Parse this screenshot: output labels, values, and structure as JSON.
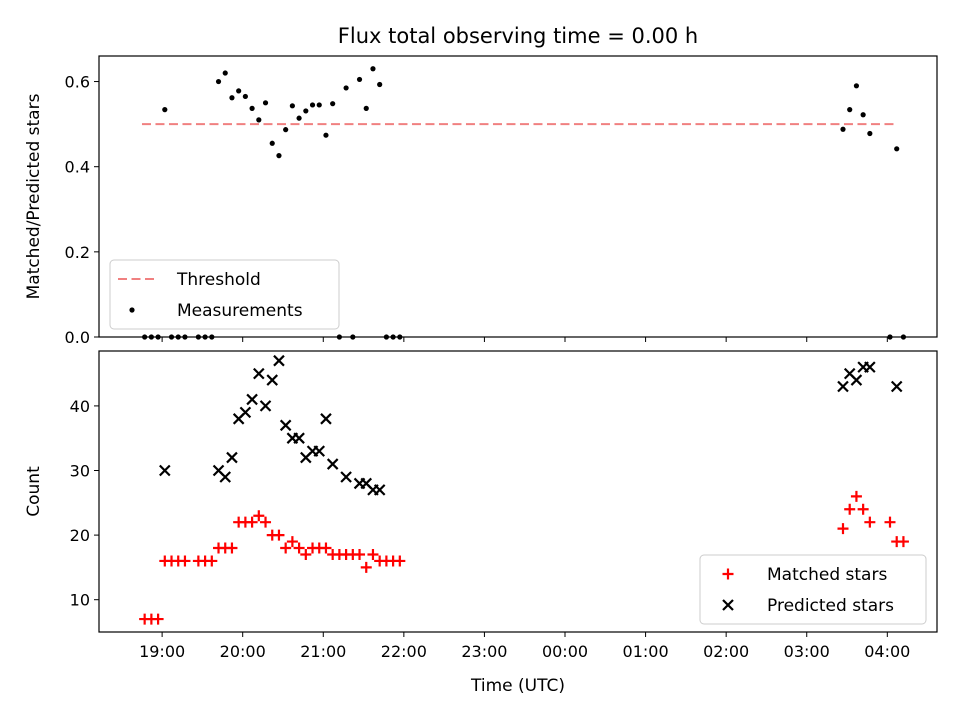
{
  "figure": {
    "title": "Flux total observing time = 0.00 h"
  },
  "chart_data": [
    {
      "type": "scatter",
      "ylabel": "Matched/Predicted stars",
      "xlabel": "",
      "ylim": [
        0,
        0.66
      ],
      "xlim": [
        "18:13",
        "04:37"
      ],
      "yticks": [
        0.0,
        0.2,
        0.4,
        0.6
      ],
      "ytick_labels": [
        "0.0",
        "0.2",
        "0.4",
        "0.6"
      ],
      "xticks": [
        "19:00",
        "20:00",
        "21:00",
        "22:00",
        "23:00",
        "00:00",
        "01:00",
        "02:00",
        "03:00",
        "04:00"
      ],
      "x_tick_labels_shown": false,
      "grid": false,
      "legend_placement": "lower-left",
      "legend": [
        {
          "label": "Threshold",
          "style": "dashed-line",
          "color": "#f08080"
        },
        {
          "label": "Measurements",
          "style": "dot",
          "color": "#000000"
        }
      ],
      "threshold": {
        "value": 0.5,
        "x_start": "18:45",
        "x_end": "04:05",
        "color": "#f08080"
      },
      "series": [
        {
          "name": "Measurements",
          "color": "#000000",
          "points": [
            [
              "18:47",
              0.0
            ],
            [
              "18:52",
              0.0
            ],
            [
              "18:57",
              0.0
            ],
            [
              "19:02",
              0.534
            ],
            [
              "19:07",
              0.0
            ],
            [
              "19:12",
              0.0
            ],
            [
              "19:17",
              0.0
            ],
            [
              "19:27",
              0.0
            ],
            [
              "19:32",
              0.0
            ],
            [
              "19:37",
              0.0
            ],
            [
              "19:42",
              0.6
            ],
            [
              "19:47",
              0.62
            ],
            [
              "19:52",
              0.562
            ],
            [
              "19:57",
              0.578
            ],
            [
              "20:02",
              0.565
            ],
            [
              "20:07",
              0.537
            ],
            [
              "20:12",
              0.51
            ],
            [
              "20:17",
              0.55
            ],
            [
              "20:22",
              0.455
            ],
            [
              "20:27",
              0.426
            ],
            [
              "20:32",
              0.487
            ],
            [
              "20:37",
              0.543
            ],
            [
              "20:42",
              0.514
            ],
            [
              "20:47",
              0.531
            ],
            [
              "20:52",
              0.545
            ],
            [
              "20:57",
              0.545
            ],
            [
              "21:02",
              0.474
            ],
            [
              "21:07",
              0.548
            ],
            [
              "21:12",
              0.0
            ],
            [
              "21:17",
              0.585
            ],
            [
              "21:22",
              0.0
            ],
            [
              "21:27",
              0.605
            ],
            [
              "21:32",
              0.537
            ],
            [
              "21:37",
              0.63
            ],
            [
              "21:42",
              0.593
            ],
            [
              "21:47",
              0.0
            ],
            [
              "21:52",
              0.0
            ],
            [
              "21:57",
              0.0
            ],
            [
              "03:27",
              0.488
            ],
            [
              "03:32",
              0.534
            ],
            [
              "03:37",
              0.59
            ],
            [
              "03:42",
              0.522
            ],
            [
              "03:47",
              0.478
            ],
            [
              "04:02",
              0.0
            ],
            [
              "04:07",
              0.442
            ],
            [
              "04:12",
              0.0
            ]
          ]
        }
      ]
    },
    {
      "type": "scatter",
      "ylabel": "Count",
      "xlabel": "Time (UTC)",
      "ylim": [
        5,
        48.5
      ],
      "xlim": [
        "18:13",
        "04:37"
      ],
      "yticks": [
        10,
        20,
        30,
        40
      ],
      "ytick_labels": [
        "10",
        "20",
        "30",
        "40"
      ],
      "xticks": [
        "19:00",
        "20:00",
        "21:00",
        "22:00",
        "23:00",
        "00:00",
        "01:00",
        "02:00",
        "03:00",
        "04:00"
      ],
      "x_tick_labels": [
        "19:00",
        "20:00",
        "21:00",
        "22:00",
        "23:00",
        "00:00",
        "01:00",
        "02:00",
        "03:00",
        "04:00"
      ],
      "grid": false,
      "legend_placement": "lower-right",
      "legend": [
        {
          "label": "Matched stars",
          "style": "plus",
          "color": "#ff0000"
        },
        {
          "label": "Predicted stars",
          "style": "cross",
          "color": "#000000"
        }
      ],
      "series": [
        {
          "name": "Matched stars",
          "marker": "plus",
          "color": "#ff0000",
          "points": [
            [
              "18:47",
              7
            ],
            [
              "18:52",
              7
            ],
            [
              "18:57",
              7
            ],
            [
              "19:02",
              16
            ],
            [
              "19:07",
              16
            ],
            [
              "19:12",
              16
            ],
            [
              "19:17",
              16
            ],
            [
              "19:27",
              16
            ],
            [
              "19:32",
              16
            ],
            [
              "19:37",
              16
            ],
            [
              "19:42",
              18
            ],
            [
              "19:47",
              18
            ],
            [
              "19:52",
              18
            ],
            [
              "19:57",
              22
            ],
            [
              "20:02",
              22
            ],
            [
              "20:07",
              22
            ],
            [
              "20:12",
              23
            ],
            [
              "20:17",
              22
            ],
            [
              "20:22",
              20
            ],
            [
              "20:27",
              20
            ],
            [
              "20:32",
              18
            ],
            [
              "20:37",
              19
            ],
            [
              "20:42",
              18
            ],
            [
              "20:47",
              17
            ],
            [
              "20:52",
              18
            ],
            [
              "20:57",
              18
            ],
            [
              "21:02",
              18
            ],
            [
              "21:07",
              17
            ],
            [
              "21:12",
              17
            ],
            [
              "21:17",
              17
            ],
            [
              "21:22",
              17
            ],
            [
              "21:27",
              17
            ],
            [
              "21:32",
              15
            ],
            [
              "21:37",
              17
            ],
            [
              "21:42",
              16
            ],
            [
              "21:47",
              16
            ],
            [
              "21:52",
              16
            ],
            [
              "21:57",
              16
            ],
            [
              "03:27",
              21
            ],
            [
              "03:32",
              24
            ],
            [
              "03:37",
              26
            ],
            [
              "03:42",
              24
            ],
            [
              "03:47",
              22
            ],
            [
              "04:02",
              22
            ],
            [
              "04:07",
              19
            ],
            [
              "04:12",
              19
            ]
          ]
        },
        {
          "name": "Predicted stars",
          "marker": "cross",
          "color": "#000000",
          "points": [
            [
              "19:02",
              30
            ],
            [
              "19:42",
              30
            ],
            [
              "19:47",
              29
            ],
            [
              "19:52",
              32
            ],
            [
              "19:57",
              38
            ],
            [
              "20:02",
              39
            ],
            [
              "20:07",
              41
            ],
            [
              "20:12",
              45
            ],
            [
              "20:17",
              40
            ],
            [
              "20:22",
              44
            ],
            [
              "20:27",
              47
            ],
            [
              "20:32",
              37
            ],
            [
              "20:37",
              35
            ],
            [
              "20:42",
              35
            ],
            [
              "20:47",
              32
            ],
            [
              "20:52",
              33
            ],
            [
              "20:57",
              33
            ],
            [
              "21:02",
              38
            ],
            [
              "21:07",
              31
            ],
            [
              "21:17",
              29
            ],
            [
              "21:27",
              28
            ],
            [
              "21:32",
              28
            ],
            [
              "21:37",
              27
            ],
            [
              "21:42",
              27
            ],
            [
              "03:27",
              43
            ],
            [
              "03:32",
              45
            ],
            [
              "03:37",
              44
            ],
            [
              "03:42",
              46
            ],
            [
              "03:47",
              46
            ],
            [
              "04:07",
              43
            ]
          ]
        }
      ]
    }
  ]
}
